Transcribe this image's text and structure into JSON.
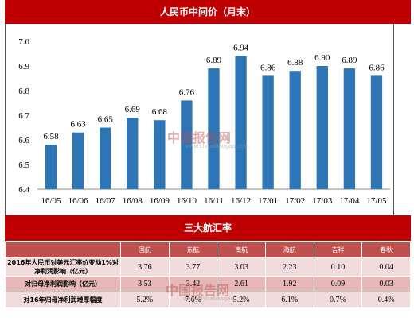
{
  "banner1": "人民币中间价（月末）",
  "banner2": "三大航汇率",
  "watermark": {
    "text": "中国报告网",
    "sub": "www.chinabaogao.com"
  },
  "chart_data": {
    "type": "bar",
    "categories": [
      "16/05",
      "16/06",
      "16/07",
      "16/08",
      "16/09",
      "16/10",
      "16/11",
      "16/12",
      "17/01",
      "17/02",
      "17/03",
      "17/04",
      "17/05"
    ],
    "values": [
      6.58,
      6.63,
      6.65,
      6.69,
      6.68,
      6.76,
      6.89,
      6.94,
      6.86,
      6.88,
      6.9,
      6.89,
      6.86
    ],
    "value_labels": [
      "6.58",
      "6.63",
      "6.65",
      "6.69",
      "6.68",
      "6.76",
      "6.89",
      "6.94",
      "6.86",
      "6.88",
      "6.90",
      "6.89",
      "6.86"
    ],
    "ylim": [
      6.4,
      7.0
    ],
    "yticks": [
      "6.4",
      "6.5",
      "6.6",
      "6.7",
      "6.8",
      "6.9",
      "7.0"
    ],
    "grid": false,
    "bar_color": "#2e75b6"
  },
  "table": {
    "headers": [
      "国航",
      "东航",
      "南航",
      "海航",
      "吉祥",
      "春秋"
    ],
    "rows": [
      {
        "label": "2016年人民币对美元汇率价变动1%对净利润影响（亿元）",
        "values": [
          "3.76",
          "3.77",
          "3.03",
          "2.23",
          "0.10",
          "0.04"
        ]
      },
      {
        "label": "对归母净利润影响（亿元）",
        "values": [
          "3.53",
          "3.42",
          "2.61",
          "1.92",
          "0.09",
          "0.03"
        ]
      },
      {
        "label": "对16年归母净利润增厚幅度",
        "values": [
          "5.2%",
          "7.6%",
          "5.2%",
          "6.1%",
          "0.7%",
          "0.4%"
        ]
      }
    ]
  }
}
